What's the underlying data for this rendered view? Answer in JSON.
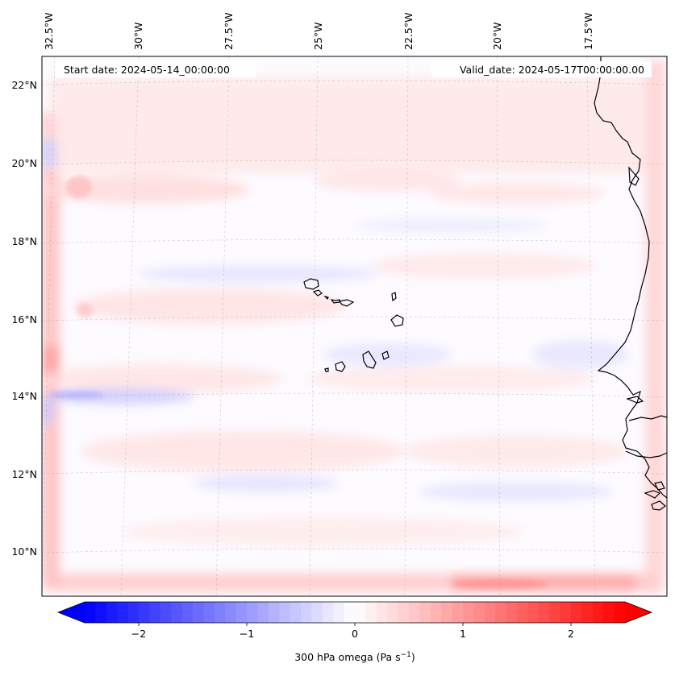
{
  "header": {
    "start_date": "Start date: 2024-05-14_00:00:00",
    "valid_date": "Valid_date: 2024-05-17T00:00:00.00"
  },
  "map": {
    "extent": {
      "lon_min": -33.0,
      "lon_max": -14.8,
      "lat_min": 8.9,
      "lat_max": 22.8
    },
    "longitude_labels": [
      {
        "value": -32.5,
        "label": "32.5°W"
      },
      {
        "value": -30.0,
        "label": "30°W"
      },
      {
        "value": -27.5,
        "label": "27.5°W"
      },
      {
        "value": -25.0,
        "label": "25°W"
      },
      {
        "value": -22.5,
        "label": "22.5°W"
      },
      {
        "value": -20.0,
        "label": "20°W"
      },
      {
        "value": -17.5,
        "label": "17.5°W"
      }
    ],
    "latitude_labels": [
      {
        "value": 22,
        "label": "22°N"
      },
      {
        "value": 20,
        "label": "20°N"
      },
      {
        "value": 18,
        "label": "18°N"
      },
      {
        "value": 16,
        "label": "16°N"
      },
      {
        "value": 14,
        "label": "14°N"
      },
      {
        "value": 12,
        "label": "12°N"
      },
      {
        "value": 10,
        "label": "10°N"
      }
    ],
    "gridlines": true,
    "features": [
      "cabo-verde-islands",
      "west-africa-coastline"
    ]
  },
  "colorbar": {
    "colormap": "bwr",
    "min": -2.5,
    "max": 2.5,
    "extend": "both",
    "ticks": [
      {
        "value": -2,
        "label": "−2"
      },
      {
        "value": -1,
        "label": "−1"
      },
      {
        "value": 0,
        "label": "0"
      },
      {
        "value": 1,
        "label": "1"
      },
      {
        "value": 2,
        "label": "2"
      }
    ],
    "label": "300 hPa omega (Pa s",
    "label_sup": "−1",
    "label_end": ")",
    "colors": {
      "low": "#0000ff",
      "mid": "#ffffff",
      "high": "#ff0000"
    }
  }
}
